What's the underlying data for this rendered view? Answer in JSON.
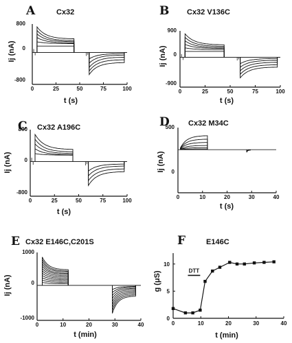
{
  "chart_data": [
    {
      "panel": "A",
      "title": "Cx32",
      "type": "line",
      "xlabel": "t (s)",
      "ylabel": "Ij (nA)",
      "xlim": [
        0,
        100
      ],
      "ylim": [
        -800,
        800
      ],
      "xticks": [
        "0",
        "25",
        "50",
        "75",
        "100"
      ],
      "yticks": {
        "top": "800",
        "mid": "0",
        "bottom": "-800"
      },
      "grid": false,
      "pulse_protocol": {
        "prepulse_end_s": 5,
        "pulse1": [
          5,
          44
        ],
        "gap_s": [
          44,
          57
        ],
        "pulse2": [
          60,
          97
        ]
      },
      "pulse1_traces": [
        {
          "start": 720,
          "end": 380
        },
        {
          "start": 620,
          "end": 330
        },
        {
          "start": 520,
          "end": 300
        },
        {
          "start": 420,
          "end": 270
        },
        {
          "start": 300,
          "end": 250
        },
        {
          "start": 180,
          "end": 180
        }
      ],
      "pulse2_traces": [
        {
          "start": -620,
          "end": -280
        },
        {
          "start": -520,
          "end": -200
        },
        {
          "start": -420,
          "end": -130
        },
        {
          "start": -300,
          "end": -70
        },
        {
          "start": -180,
          "end": -30
        }
      ]
    },
    {
      "panel": "B",
      "title": "Cx32 V136C",
      "type": "line",
      "xlabel": "t (s)",
      "ylabel": "Ij (nA)",
      "xlim": [
        0,
        100
      ],
      "ylim": [
        -900,
        900
      ],
      "xticks": [
        "0",
        "25",
        "50",
        "75",
        "100"
      ],
      "yticks": {
        "top": "900",
        "mid": "0",
        "bottom": "-900"
      },
      "grid": false,
      "pulse_protocol": {
        "prepulse_end_s": 5,
        "pulse1": [
          5,
          44
        ],
        "gap_s": [
          44,
          57
        ],
        "pulse2": [
          60,
          97
        ]
      },
      "pulse1_traces": [
        {
          "start": 800,
          "end": 420
        },
        {
          "start": 680,
          "end": 370
        },
        {
          "start": 560,
          "end": 330
        },
        {
          "start": 440,
          "end": 300
        },
        {
          "start": 320,
          "end": 260
        },
        {
          "start": 200,
          "end": 200
        }
      ],
      "pulse2_traces": [
        {
          "start": -700,
          "end": -330
        },
        {
          "start": -580,
          "end": -250
        },
        {
          "start": -460,
          "end": -170
        },
        {
          "start": -340,
          "end": -100
        },
        {
          "start": -220,
          "end": -40
        }
      ]
    },
    {
      "panel": "C",
      "title": "Cx32 A196C",
      "type": "line",
      "xlabel": "t (s)",
      "ylabel": "Ij (nA)",
      "xlim": [
        0,
        100
      ],
      "ylim": [
        -800,
        800
      ],
      "xticks": [
        "0",
        "25",
        "50",
        "75",
        "100"
      ],
      "yticks": {
        "top": "800",
        "mid": "0",
        "bottom": "-800"
      },
      "grid": false,
      "pulse_protocol": {
        "prepulse_end_s": 5,
        "pulse1": [
          5,
          44
        ],
        "gap_s": [
          44,
          57
        ],
        "pulse2": [
          60,
          97
        ]
      },
      "pulse1_traces": [
        {
          "start": 680,
          "end": 300
        },
        {
          "start": 560,
          "end": 240
        },
        {
          "start": 440,
          "end": 200
        },
        {
          "start": 320,
          "end": 170
        },
        {
          "start": 200,
          "end": 160
        }
      ],
      "pulse2_traces": [
        {
          "start": -600,
          "end": -250
        },
        {
          "start": -480,
          "end": -180
        },
        {
          "start": -360,
          "end": -110
        },
        {
          "start": -240,
          "end": -60
        }
      ]
    },
    {
      "panel": "D",
      "title": "Cx32 M34C",
      "type": "line",
      "xlabel": "t (s)",
      "ylabel": "Ij (nA)",
      "xlim": [
        0,
        40
      ],
      "ylim": [
        -900,
        500
      ],
      "xticks": [
        "0",
        "10",
        "20",
        "30",
        "40"
      ],
      "yticks": {
        "top": "500",
        "mid": "0",
        "bottom": ""
      },
      "grid": false,
      "pulse_protocol": {
        "pulse1": [
          1,
          12
        ],
        "pulse2": [
          28,
          29.5
        ]
      },
      "pulse1_traces": [
        {
          "start": 40,
          "end": 320
        },
        {
          "start": 30,
          "end": 240
        },
        {
          "start": 25,
          "end": 165
        },
        {
          "start": 15,
          "end": 95
        },
        {
          "start": 10,
          "end": 45
        },
        {
          "start": 5,
          "end": 15
        }
      ],
      "pulse2_traces": [
        {
          "start": -60,
          "end": -10
        },
        {
          "start": -40,
          "end": -5
        }
      ]
    },
    {
      "panel": "E",
      "title": "Cx32 E146C,C201S",
      "type": "line",
      "xlabel": "t (min)",
      "ylabel": "Ij (nA)",
      "xlim": [
        0,
        40
      ],
      "ylim": [
        -1000,
        1000
      ],
      "xticks": [
        "0",
        "10",
        "20",
        "30",
        "40"
      ],
      "yticks": {
        "top": "1000",
        "mid": "0",
        "bottom": "-1000"
      },
      "grid": false,
      "pulse_protocol": {
        "pulse1": [
          2,
          12
        ],
        "pulse2": [
          29,
          38
        ]
      },
      "pulse1_traces": [
        {
          "start": 860,
          "end": 470
        },
        {
          "start": 790,
          "end": 430
        },
        {
          "start": 720,
          "end": 400
        },
        {
          "start": 650,
          "end": 360
        },
        {
          "start": 580,
          "end": 330
        },
        {
          "start": 510,
          "end": 290
        },
        {
          "start": 440,
          "end": 250
        },
        {
          "start": 370,
          "end": 210
        },
        {
          "start": 300,
          "end": 170
        },
        {
          "start": 230,
          "end": 130
        },
        {
          "start": 160,
          "end": 90
        },
        {
          "start": 90,
          "end": 50
        }
      ],
      "pulse2_traces": [
        {
          "start": -850,
          "end": -320
        },
        {
          "start": -760,
          "end": -280
        },
        {
          "start": -670,
          "end": -240
        },
        {
          "start": -580,
          "end": -200
        },
        {
          "start": -490,
          "end": -160
        },
        {
          "start": -400,
          "end": -120
        },
        {
          "start": -310,
          "end": -85
        },
        {
          "start": -220,
          "end": -55
        },
        {
          "start": -130,
          "end": -30
        }
      ]
    },
    {
      "panel": "F",
      "title": "E146C",
      "type": "line",
      "xlabel": "t (min)",
      "ylabel": "g (μS)",
      "xlim": [
        0,
        45
      ],
      "ylim": [
        0,
        12
      ],
      "xticks": [
        "0",
        "10",
        "20",
        "30",
        "40"
      ],
      "yticks": [
        "0",
        "5",
        "10"
      ],
      "grid": false,
      "annotation": {
        "text": "DTT",
        "x_start": 6,
        "x_end": 11
      },
      "x": [
        0,
        5,
        8,
        11,
        13,
        16,
        19,
        23,
        26,
        29,
        33,
        37,
        41
      ],
      "y": [
        1.8,
        1.0,
        1.0,
        1.5,
        6.8,
        8.7,
        9.4,
        10.3,
        10.0,
        10.0,
        10.2,
        10.3,
        10.4
      ]
    }
  ]
}
